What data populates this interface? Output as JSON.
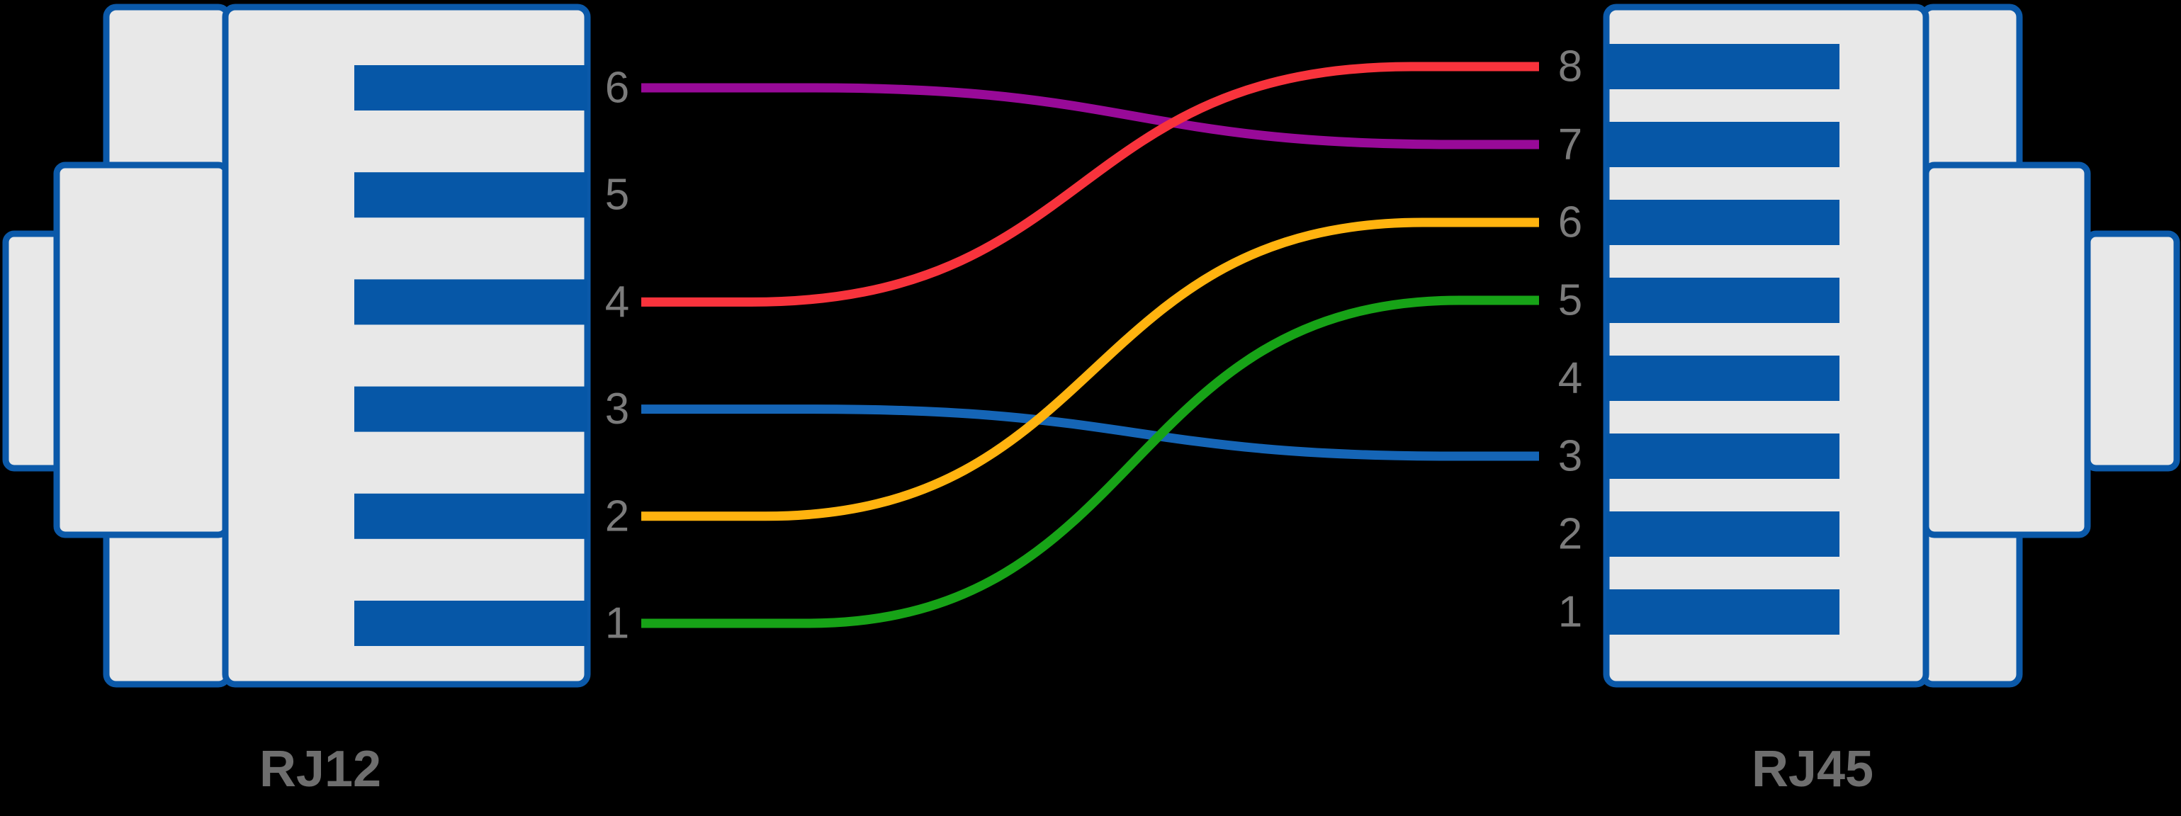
{
  "diagram": {
    "background_color": "#000000",
    "description": "RJ12 to RJ45 crossover wiring pinout diagram"
  },
  "palette": {
    "connector_body_fill": "#e8e8e8",
    "connector_outline": "#0b59a9",
    "pin_bar_fill": "#0657a7",
    "pin_number_color": "#7b7b7b",
    "title_color": "#6e6e6e",
    "wires": {
      "purple": "#980a98",
      "red": "#f8333c",
      "blue": "#1565b6",
      "yellow": "#ffb30f",
      "green": "#17a317"
    }
  },
  "connectors": {
    "left": {
      "label": "RJ12",
      "pin_count": 6,
      "pins": [
        {
          "number": "6",
          "wire": "purple"
        },
        {
          "number": "5",
          "wire": null
        },
        {
          "number": "4",
          "wire": "red"
        },
        {
          "number": "3",
          "wire": "blue"
        },
        {
          "number": "2",
          "wire": "yellow"
        },
        {
          "number": "1",
          "wire": "green"
        }
      ]
    },
    "right": {
      "label": "RJ45",
      "pin_count": 8,
      "pins": [
        {
          "number": "8",
          "wire": "red"
        },
        {
          "number": "7",
          "wire": "purple"
        },
        {
          "number": "6",
          "wire": "yellow"
        },
        {
          "number": "5",
          "wire": "green"
        },
        {
          "number": "4",
          "wire": null
        },
        {
          "number": "3",
          "wire": "blue"
        },
        {
          "number": "2",
          "wire": null
        },
        {
          "number": "1",
          "wire": null
        }
      ]
    }
  },
  "connections": [
    {
      "from": {
        "connector": "RJ12",
        "pin": "6"
      },
      "to": {
        "connector": "RJ45",
        "pin": "7"
      },
      "color_name": "purple"
    },
    {
      "from": {
        "connector": "RJ12",
        "pin": "3"
      },
      "to": {
        "connector": "RJ45",
        "pin": "3"
      },
      "color_name": "blue"
    },
    {
      "from": {
        "connector": "RJ12",
        "pin": "4"
      },
      "to": {
        "connector": "RJ45",
        "pin": "8"
      },
      "color_name": "red"
    },
    {
      "from": {
        "connector": "RJ12",
        "pin": "2"
      },
      "to": {
        "connector": "RJ45",
        "pin": "6"
      },
      "color_name": "yellow"
    },
    {
      "from": {
        "connector": "RJ12",
        "pin": "1"
      },
      "to": {
        "connector": "RJ45",
        "pin": "5"
      },
      "color_name": "green"
    }
  ]
}
